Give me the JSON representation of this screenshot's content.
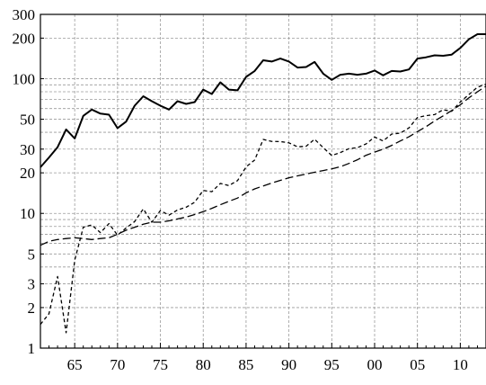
{
  "chart_data": {
    "type": "line",
    "title": "",
    "xlabel": "",
    "ylabel": "",
    "scale": {
      "y": "log",
      "x": "linear"
    },
    "xlim": [
      1961,
      2013
    ],
    "ylim": [
      1,
      300
    ],
    "grid": true,
    "legend": "none",
    "y_ticks": [
      {
        "value": 1,
        "label": "1"
      },
      {
        "value": 2,
        "label": "2"
      },
      {
        "value": 3,
        "label": "3"
      },
      {
        "value": 5,
        "label": "5"
      },
      {
        "value": 10,
        "label": "10"
      },
      {
        "value": 20,
        "label": "20"
      },
      {
        "value": 30,
        "label": "30"
      },
      {
        "value": 50,
        "label": "50"
      },
      {
        "value": 100,
        "label": "100"
      },
      {
        "value": 200,
        "label": "200"
      },
      {
        "value": 300,
        "label": "300"
      }
    ],
    "y_grid": [
      1,
      2,
      3,
      4,
      5,
      6,
      7,
      8,
      9,
      10,
      20,
      30,
      40,
      50,
      60,
      70,
      80,
      90,
      100,
      200,
      300
    ],
    "x_ticks": [
      {
        "value": 1965,
        "label": "65"
      },
      {
        "value": 1970,
        "label": "70"
      },
      {
        "value": 1975,
        "label": "75"
      },
      {
        "value": 1980,
        "label": "80"
      },
      {
        "value": 1985,
        "label": "85"
      },
      {
        "value": 1990,
        "label": "90"
      },
      {
        "value": 1995,
        "label": "95"
      },
      {
        "value": 2000,
        "label": "00"
      },
      {
        "value": 2005,
        "label": "05"
      },
      {
        "value": 2010,
        "label": "10"
      }
    ],
    "series": [
      {
        "style": "solid",
        "x": [
          1961,
          1962,
          1963,
          1964,
          1965,
          1966,
          1967,
          1968,
          1969,
          1970,
          1971,
          1972,
          1973,
          1974,
          1975,
          1976,
          1977,
          1978,
          1979,
          1980,
          1981,
          1982,
          1983,
          1984,
          1985,
          1986,
          1987,
          1988,
          1989,
          1990,
          1991,
          1992,
          1993,
          1994,
          1995,
          1996,
          1997,
          1998,
          1999,
          2000,
          2001,
          2002,
          2003,
          2004,
          2005,
          2006,
          2007,
          2008,
          2009,
          2010,
          2011,
          2012,
          2013
        ],
        "values": [
          22,
          26,
          31,
          42,
          36,
          53,
          59,
          55,
          54,
          43,
          48,
          63,
          74,
          68,
          63,
          59,
          68,
          65,
          67,
          83,
          77,
          94,
          83,
          82,
          103,
          114,
          137,
          134,
          141,
          134,
          121,
          122,
          133,
          109,
          98,
          107,
          109,
          107,
          109,
          115,
          106,
          114,
          113,
          117,
          141,
          144,
          149,
          148,
          151,
          169,
          196,
          214,
          214
        ]
      },
      {
        "style": "dashed",
        "x": [
          1961,
          1962,
          1963,
          1964,
          1965,
          1966,
          1967,
          1968,
          1969,
          1970,
          1971,
          1972,
          1973,
          1974,
          1975,
          1976,
          1977,
          1978,
          1979,
          1980,
          1981,
          1982,
          1983,
          1984,
          1985,
          1986,
          1987,
          1988,
          1989,
          1990,
          1991,
          1992,
          1993,
          1994,
          1995,
          1996,
          1997,
          1998,
          1999,
          2000,
          2001,
          2002,
          2003,
          2004,
          2005,
          2006,
          2007,
          2008,
          2009,
          2010,
          2011,
          2012,
          2013
        ],
        "values": [
          1.5,
          1.8,
          3.4,
          1.3,
          4.5,
          7.9,
          8.2,
          7.2,
          8.4,
          6.9,
          7.8,
          8.7,
          10.8,
          8.6,
          10.5,
          9.7,
          10.6,
          11.1,
          12.1,
          14.8,
          14.5,
          16.7,
          16.1,
          17.5,
          22.1,
          24.9,
          35.4,
          34.2,
          34.1,
          33.4,
          31.2,
          31.5,
          35.5,
          30.8,
          26.9,
          28.3,
          30.2,
          30.8,
          32.8,
          36.9,
          34.5,
          38.8,
          39.4,
          43.1,
          51.5,
          53.1,
          54.1,
          58.8,
          57.3,
          67.1,
          76.2,
          86.5,
          91
        ]
      },
      {
        "style": "longdash",
        "x": [
          1961,
          1962,
          1963,
          1964,
          1965,
          1966,
          1967,
          1968,
          1969,
          1970,
          1971,
          1972,
          1973,
          1974,
          1975,
          1976,
          1977,
          1978,
          1979,
          1980,
          1981,
          1982,
          1983,
          1984,
          1985,
          1986,
          1987,
          1988,
          1989,
          1990,
          1991,
          1992,
          1993,
          1994,
          1995,
          1996,
          1997,
          1998,
          1999,
          2000,
          2001,
          2002,
          2003,
          2004,
          2005,
          2006,
          2007,
          2008,
          2009,
          2010,
          2011,
          2012,
          2013
        ],
        "values": [
          5.8,
          6.2,
          6.4,
          6.5,
          6.6,
          6.5,
          6.4,
          6.5,
          6.6,
          7.0,
          7.5,
          7.9,
          8.3,
          8.6,
          8.6,
          8.8,
          9.1,
          9.4,
          9.8,
          10.3,
          10.9,
          11.6,
          12.3,
          13.0,
          14.2,
          15.2,
          16.0,
          16.8,
          17.6,
          18.4,
          19.0,
          19.6,
          20.2,
          20.8,
          21.4,
          22.2,
          23.5,
          25.0,
          27.0,
          28.5,
          30.0,
          32.0,
          34.5,
          37.0,
          40.5,
          44.0,
          48.5,
          53.0,
          58.0,
          64.0,
          72.0,
          80.0,
          88.0
        ]
      }
    ]
  },
  "colors": {
    "line": "#000000",
    "grid": "#9a9a9a",
    "background": "#ffffff"
  }
}
